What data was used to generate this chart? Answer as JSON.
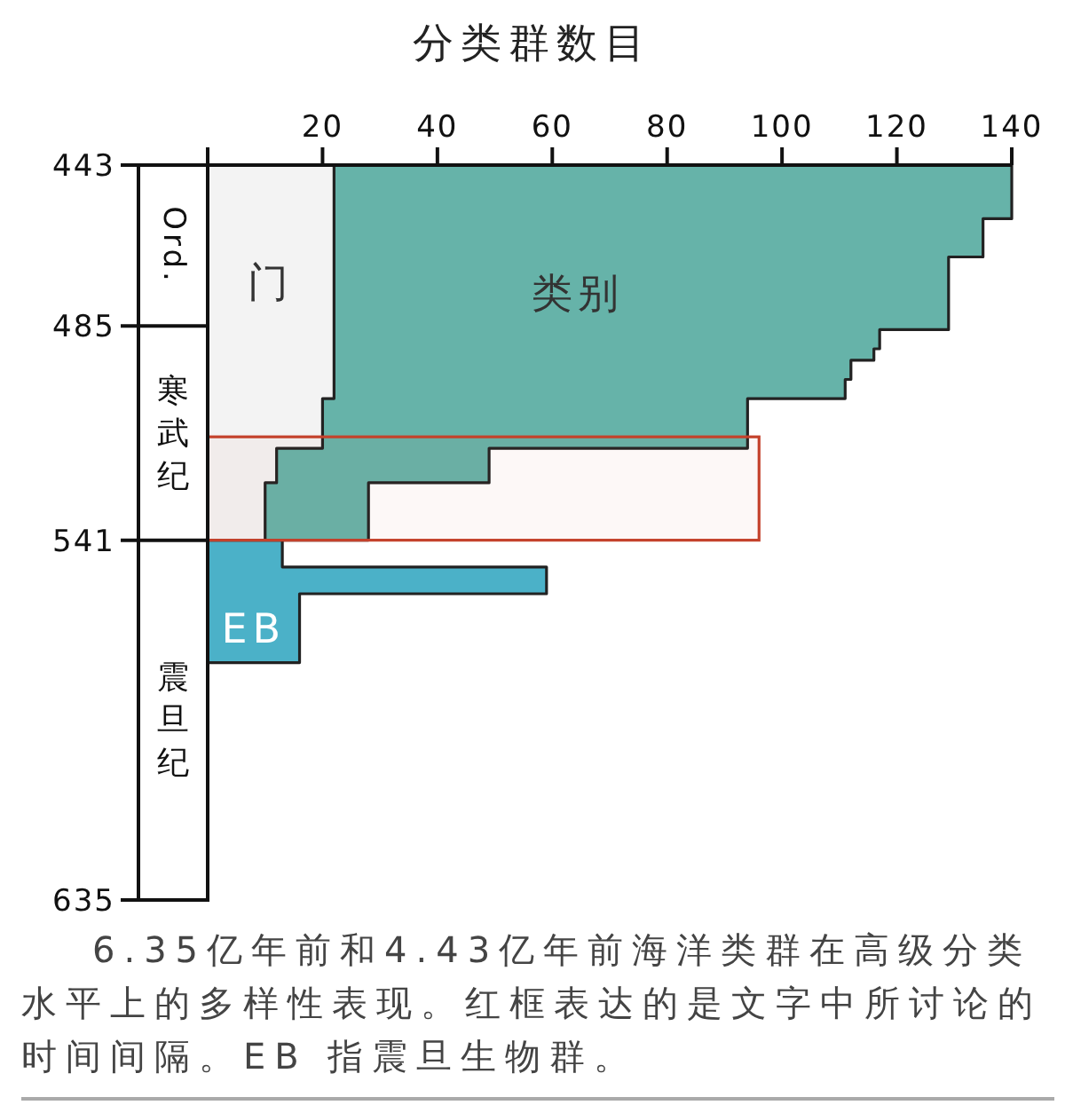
{
  "chart_data": {
    "type": "area",
    "xlabel": "分类群数目",
    "xlim": [
      0,
      140
    ],
    "xticks": [
      {
        "value": 0,
        "label": null
      },
      20,
      40,
      60,
      80,
      100,
      120,
      140
    ],
    "ylim": [
      635,
      443
    ],
    "yticks": [
      443,
      485,
      541,
      635
    ],
    "series": [
      {
        "name": "类别",
        "color": "#66b3a9",
        "x": [
          0,
          140,
          140,
          135,
          135,
          129,
          129,
          117,
          117,
          116,
          116,
          112,
          112,
          111,
          111,
          94,
          94,
          49,
          49,
          28,
          28,
          0
        ],
        "values": [
          443,
          443,
          457,
          457,
          467,
          467,
          486,
          486,
          491,
          491,
          494,
          494,
          499,
          499,
          504,
          504,
          517,
          517,
          526,
          526,
          541,
          541
        ]
      },
      {
        "name": "门",
        "color": "#f3f3f3",
        "x": [
          0,
          22,
          22,
          20,
          20,
          12,
          12,
          10,
          10,
          0
        ],
        "values": [
          443,
          443,
          504,
          504,
          517,
          517,
          526,
          526,
          541,
          541
        ]
      },
      {
        "name": "EB",
        "color": "#4bb1c8",
        "x": [
          0,
          13,
          13,
          59,
          59,
          16,
          16,
          0
        ],
        "values": [
          541,
          541,
          548,
          548,
          555,
          555,
          573,
          573
        ]
      }
    ],
    "bands": [
      {
        "axis": "y",
        "from": 514,
        "to": 541,
        "color": "#c4422c"
      }
    ],
    "annotations": [
      "Ord.",
      "寒武纪",
      "震旦纪",
      "6.35亿年前和4.43亿年前海洋类群在高级分类水平上的多样性表现。红框表达的是文字中所讨论的时间间隔。EB 指震旦生物群。"
    ]
  }
}
